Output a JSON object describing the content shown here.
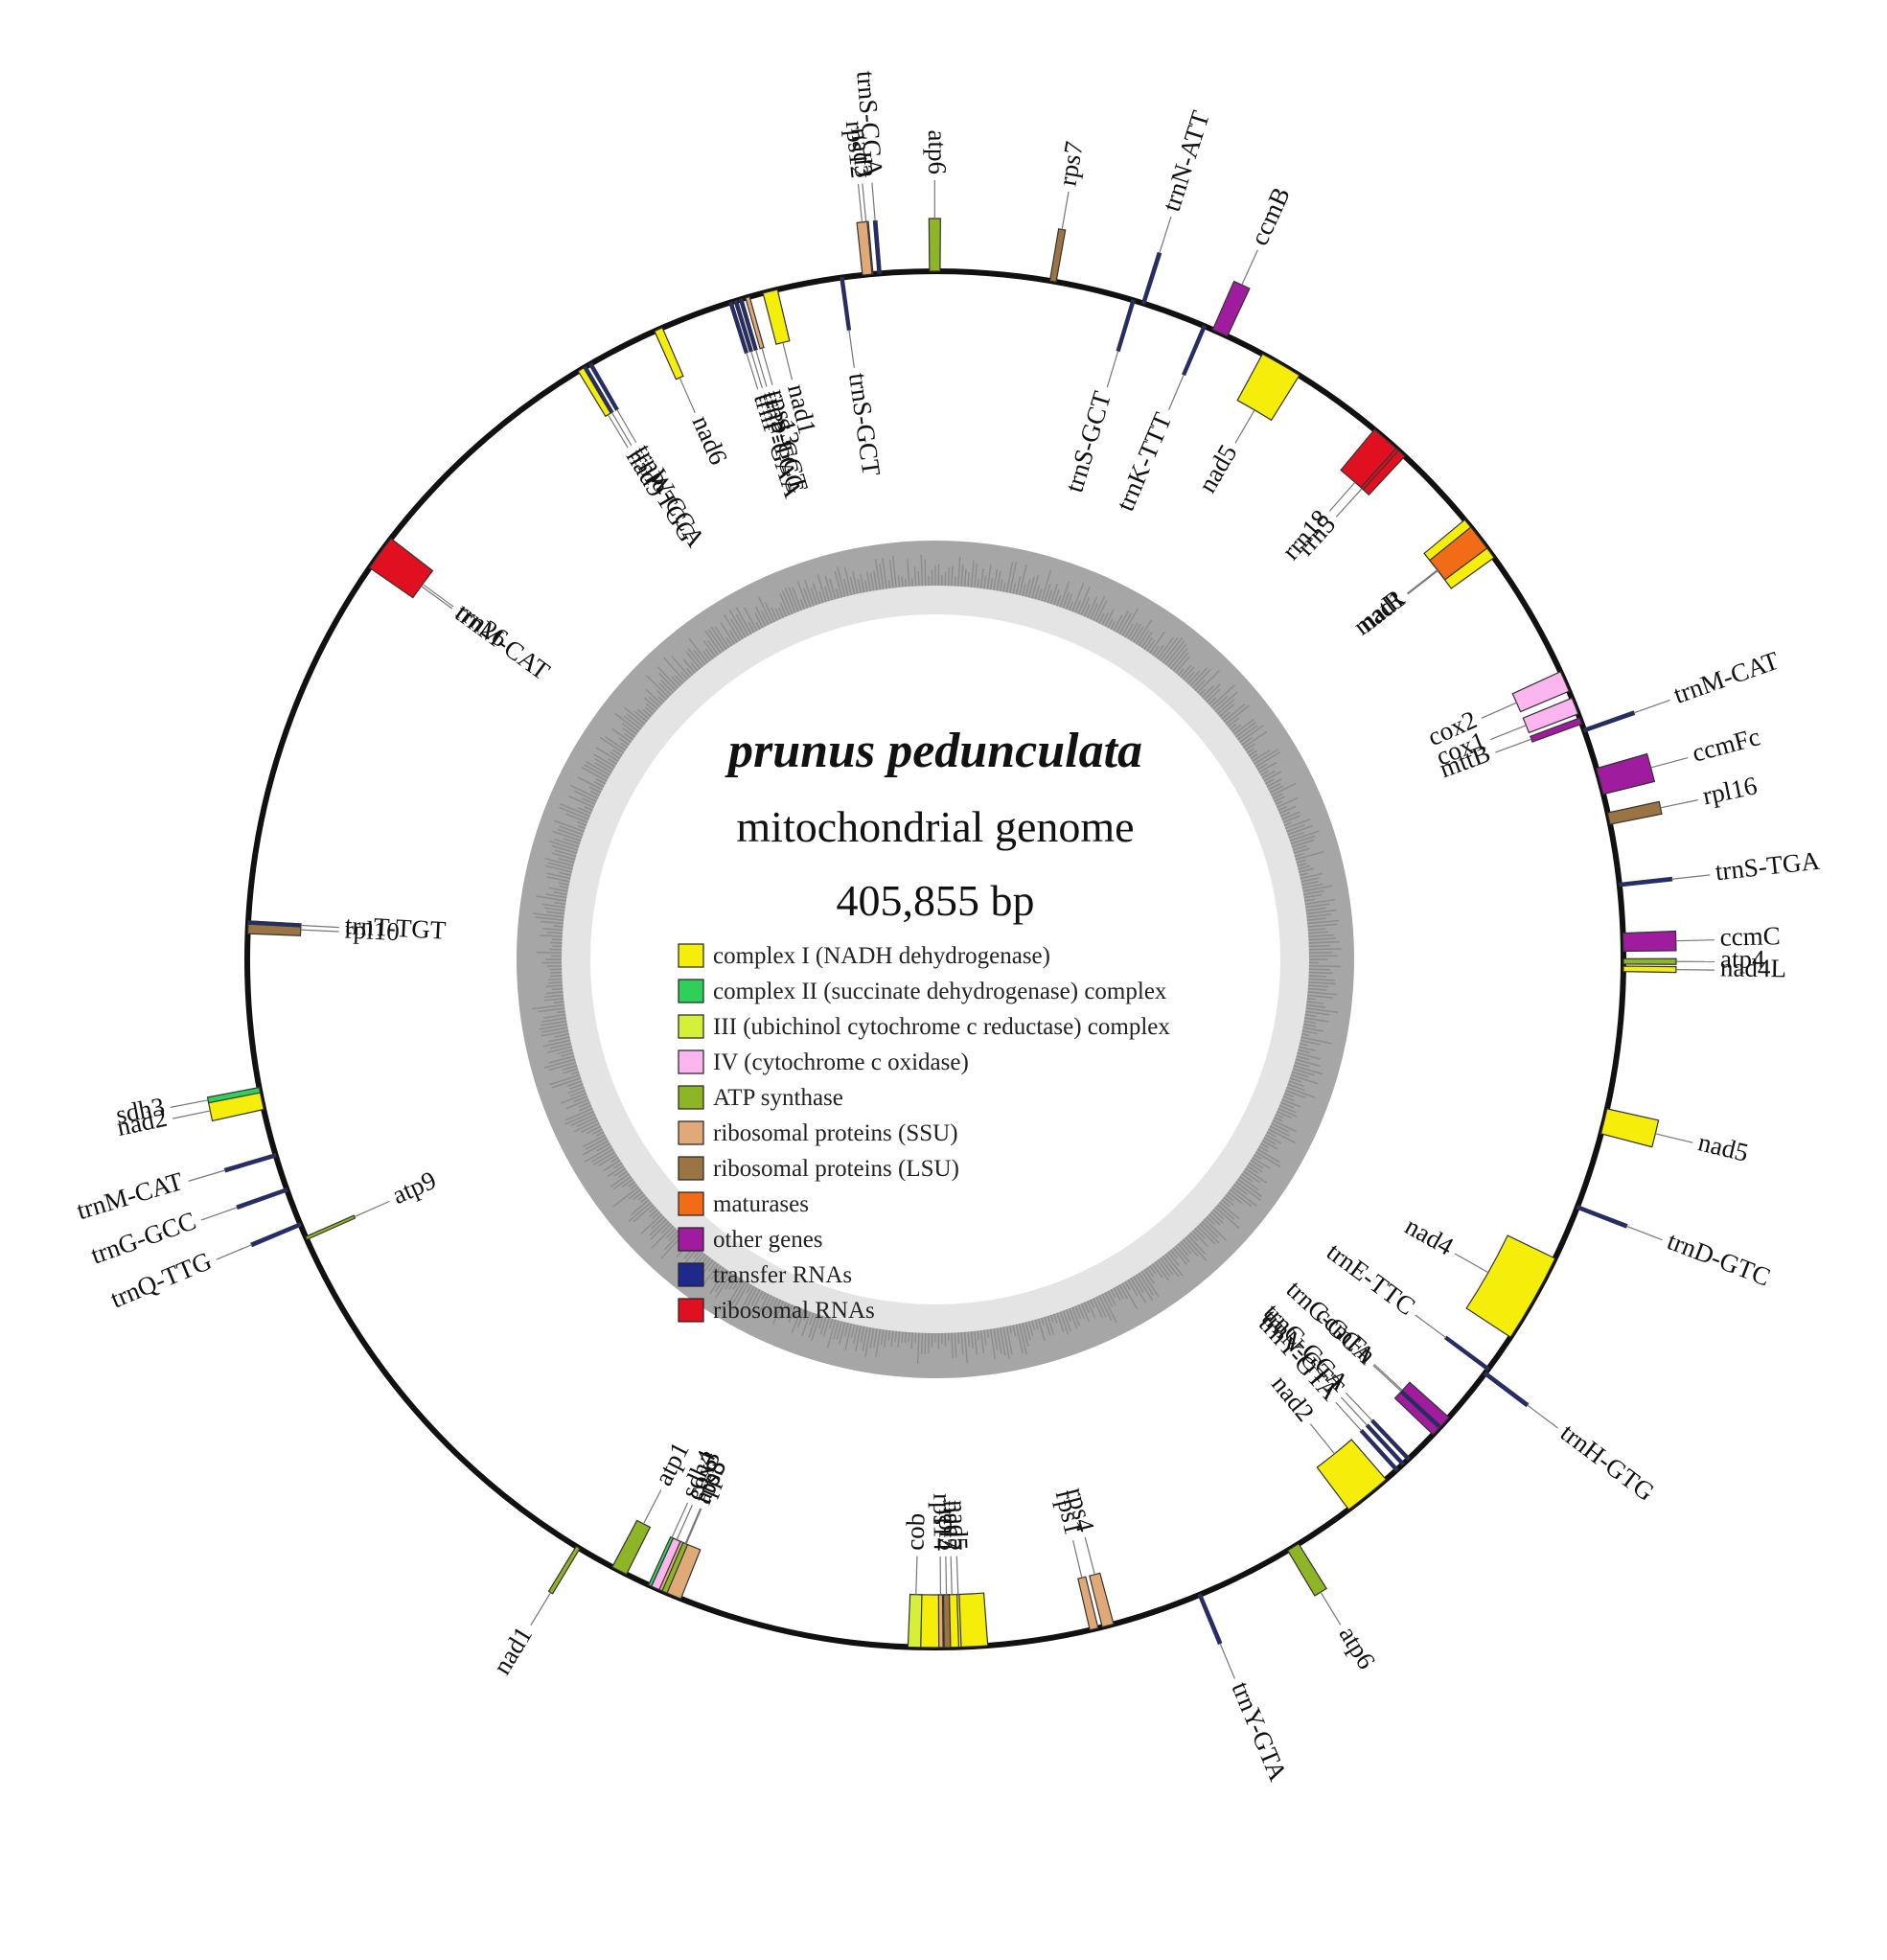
{
  "title": "prunus pedunculata",
  "subtitle": "mitochondrial genome",
  "size_label": "405,855 bp",
  "genome_length": 405855,
  "colors": {
    "complex_I": "#f5ee0a",
    "complex_II": "#2ed05a",
    "complex_III": "#d6f03a",
    "complex_IV": "#fbb6ef",
    "atp": "#8db526",
    "ssu": "#e0aa78",
    "lsu": "#9a7443",
    "maturases": "#f26b17",
    "other": "#a01c9e",
    "trna": "#1d2a8a",
    "rrna": "#e01020",
    "ring": "#111111",
    "gc_outer": "#a6a6a6",
    "gc_inner": "#e4e4e4"
  },
  "legend": [
    {
      "label": "complex I (NADH dehydrogenase)",
      "color": "#f5ee0a"
    },
    {
      "label": "complex II (succinate dehydrogenase) complex",
      "color": "#2ed05a"
    },
    {
      "label": "III (ubichinol cytochrome c reductase) complex",
      "color": "#d6f03a"
    },
    {
      "label": "IV (cytochrome c oxidase)",
      "color": "#fbb6ef"
    },
    {
      "label": "ATP synthase",
      "color": "#8db526"
    },
    {
      "label": "ribosomal proteins (SSU)",
      "color": "#e0aa78"
    },
    {
      "label": "ribosomal proteins (LSU)",
      "color": "#9a7443"
    },
    {
      "label": "maturases",
      "color": "#f26b17"
    },
    {
      "label": "other genes",
      "color": "#a01c9e"
    },
    {
      "label": "transfer RNAs",
      "color": "#1d2a8a"
    },
    {
      "label": "ribosomal RNAs",
      "color": "#e01020"
    }
  ],
  "genes": [
    {
      "name": "trnS-CGA",
      "cat": "trna",
      "pos": 400450,
      "len": 300,
      "strand": "out"
    },
    {
      "name": "nad3",
      "cat": "complex_I",
      "pos": 399600,
      "len": 400,
      "strand": "out"
    },
    {
      "name": "rps12",
      "cat": "ssu",
      "pos": 399000,
      "len": 900,
      "strand": "out"
    },
    {
      "name": "atp6",
      "cat": "atp",
      "pos": 405300,
      "len": 1000,
      "strand": "out"
    },
    {
      "name": "rps7",
      "cat": "lsu",
      "pos": 10800,
      "len": 600,
      "strand": "out"
    },
    {
      "name": "trnN-ATT",
      "cat": "trna",
      "pos": 19700,
      "len": 300,
      "strand": "out"
    },
    {
      "name": "trnS-GCT",
      "cat": "trna",
      "pos": 18700,
      "len": 300,
      "strand": "in"
    },
    {
      "name": "ccmB",
      "cat": "other",
      "pos": 26800,
      "len": 1500,
      "strand": "out"
    },
    {
      "name": "trnK-TTT",
      "cat": "trna",
      "pos": 25800,
      "len": 300,
      "strand": "in"
    },
    {
      "name": "nad5",
      "cat": "complex_I",
      "pos": 32000,
      "len": 4000,
      "strand": "in"
    },
    {
      "name": "rrn18",
      "cat": "rrna",
      "pos": 44700,
      "len": 3800,
      "strand": "in"
    },
    {
      "name": "rrn5",
      "cat": "rrna",
      "pos": 47400,
      "len": 300,
      "strand": "in"
    },
    {
      "name": "nad1",
      "cat": "complex_I",
      "pos": 56700,
      "len": 4500,
      "strand": "in"
    },
    {
      "name": "matR",
      "cat": "maturases",
      "pos": 57600,
      "len": 2500,
      "strand": "in"
    },
    {
      "name": "cox2",
      "cat": "complex_IV",
      "pos": 73600,
      "len": 2000,
      "strand": "in"
    },
    {
      "name": "cox1",
      "cat": "complex_IV",
      "pos": 76300,
      "len": 1600,
      "strand": "in"
    },
    {
      "name": "mttB",
      "cat": "other",
      "pos": 78300,
      "len": 600,
      "strand": "in"
    },
    {
      "name": "trnM-CAT",
      "cat": "trna",
      "pos": 79400,
      "len": 300,
      "strand": "out"
    },
    {
      "name": "ccmFc",
      "cat": "other",
      "pos": 83300,
      "len": 2500,
      "strand": "out"
    },
    {
      "name": "rpl16",
      "cat": "lsu",
      "pos": 87600,
      "len": 1100,
      "strand": "out"
    },
    {
      "name": "trnS-TGA",
      "cat": "trna",
      "pos": 94300,
      "len": 300,
      "strand": "out"
    },
    {
      "name": "ccmC",
      "cat": "other",
      "pos": 99000,
      "len": 1700,
      "strand": "out"
    },
    {
      "name": "atp4",
      "cat": "atp",
      "pos": 101400,
      "len": 500,
      "strand": "out"
    },
    {
      "name": "nad4L",
      "cat": "complex_I",
      "pos": 102100,
      "len": 500,
      "strand": "out"
    },
    {
      "name": "nad5",
      "cat": "complex_I",
      "pos": 115600,
      "len": 2400,
      "strand": "out"
    },
    {
      "name": "trnD-GTC",
      "cat": "trna",
      "pos": 125100,
      "len": 300,
      "strand": "out"
    },
    {
      "name": "nad4",
      "cat": "complex_I",
      "pos": 130500,
      "len": 8500,
      "strand": "in"
    },
    {
      "name": "trnH-GTG",
      "cat": "trna",
      "pos": 143000,
      "len": 300,
      "strand": "out"
    },
    {
      "name": "trnE-TTC",
      "cat": "trna",
      "pos": 142500,
      "len": 300,
      "strand": "in"
    },
    {
      "name": "ccmFn",
      "cat": "other",
      "pos": 148500,
      "len": 2200,
      "strand": "in"
    },
    {
      "name": "trnC-GCA",
      "cat": "trna",
      "pos": 149600,
      "len": 300,
      "strand": "in"
    },
    {
      "name": "trnC-GCA",
      "cat": "trna",
      "pos": 153800,
      "len": 300,
      "strand": "in"
    },
    {
      "name": "trnN-GTT",
      "cat": "trna",
      "pos": 154500,
      "len": 300,
      "strand": "in"
    },
    {
      "name": "trnY-GTA",
      "cat": "trna",
      "pos": 155300,
      "len": 300,
      "strand": "in"
    },
    {
      "name": "nad2",
      "cat": "complex_I",
      "pos": 156800,
      "len": 4500,
      "strand": "in"
    },
    {
      "name": "atp6",
      "cat": "atp",
      "pos": 167000,
      "len": 1200,
      "strand": "out"
    },
    {
      "name": "trnY-GTA",
      "cat": "trna",
      "pos": 177300,
      "len": 300,
      "strand": "out"
    },
    {
      "name": "rps4",
      "cat": "ssu",
      "pos": 186000,
      "len": 1100,
      "strand": "in"
    },
    {
      "name": "rps1",
      "cat": "ssu",
      "pos": 187500,
      "len": 800,
      "strand": "in"
    },
    {
      "name": "nad7",
      "cat": "complex_I",
      "pos": 198000,
      "len": 6500,
      "strand": "in"
    },
    {
      "name": "nad5",
      "cat": "complex_I",
      "pos": 200500,
      "len": 200,
      "strand": "in"
    },
    {
      "name": "rpl5",
      "cat": "lsu",
      "pos": 201500,
      "len": 600,
      "strand": "in"
    },
    {
      "name": "rps14",
      "cat": "ssu",
      "pos": 202200,
      "len": 400,
      "strand": "in"
    },
    {
      "name": "cob",
      "cat": "complex_III",
      "pos": 204300,
      "len": 1200,
      "strand": "in"
    },
    {
      "name": "rps3",
      "cat": "ssu",
      "pos": 227400,
      "len": 3100,
      "strand": "in"
    },
    {
      "name": "atp8",
      "cat": "atp",
      "pos": 228800,
      "len": 500,
      "strand": "in"
    },
    {
      "name": "cox3",
      "cat": "complex_IV",
      "pos": 229600,
      "len": 800,
      "strand": "in"
    },
    {
      "name": "sdh4",
      "cat": "complex_II",
      "pos": 230400,
      "len": 300,
      "strand": "in"
    },
    {
      "name": "atp1",
      "cat": "atp",
      "pos": 233000,
      "len": 1500,
      "strand": "in"
    },
    {
      "name": "nad1",
      "cat": "atp",
      "pos": 238000,
      "len": 400,
      "strand": "out"
    },
    {
      "name": "atp9",
      "cat": "atp",
      "pos": 277300,
      "len": 300,
      "strand": "in"
    },
    {
      "name": "trnQ-TTG",
      "cat": "trna",
      "pos": 278700,
      "len": 300,
      "strand": "out"
    },
    {
      "name": "trnG-GCC",
      "cat": "trna",
      "pos": 282200,
      "len": 300,
      "strand": "out"
    },
    {
      "name": "trnM-CAT",
      "cat": "trna",
      "pos": 285600,
      "len": 300,
      "strand": "out"
    },
    {
      "name": "nad2",
      "cat": "complex_I",
      "pos": 290200,
      "len": 1800,
      "strand": "out"
    },
    {
      "name": "sdh3",
      "cat": "complex_II",
      "pos": 291800,
      "len": 500,
      "strand": "out"
    },
    {
      "name": "rpl10",
      "cat": "lsu",
      "pos": 306800,
      "len": 1200,
      "strand": "in"
    },
    {
      "name": "trnT-TGT",
      "cat": "trna",
      "pos": 307700,
      "len": 300,
      "strand": "in"
    },
    {
      "name": "trnM-CAT",
      "cat": "trna",
      "pos": 344700,
      "len": 500,
      "strand": "in"
    },
    {
      "name": "rrn26",
      "cat": "rrna",
      "pos": 343500,
      "len": 3400,
      "strand": "in"
    },
    {
      "name": "trnW-CCA",
      "cat": "trna",
      "pos": 371800,
      "len": 300,
      "strand": "in"
    },
    {
      "name": "trnP-TGG",
      "cat": "trna",
      "pos": 371200,
      "len": 300,
      "strand": "in"
    },
    {
      "name": "nad9",
      "cat": "complex_I",
      "pos": 370600,
      "len": 600,
      "strand": "in"
    },
    {
      "name": "nad6",
      "cat": "complex_I",
      "pos": 378700,
      "len": 800,
      "strand": "in"
    },
    {
      "name": "trnS-GCT",
      "cat": "trna",
      "pos": 387200,
      "len": 300,
      "strand": "in"
    },
    {
      "name": "trnF-GAA",
      "cat": "trna",
      "pos": 386200,
      "len": 300,
      "strand": "in"
    },
    {
      "name": "trnP-TGG",
      "cat": "trna",
      "pos": 386700,
      "len": 300,
      "strand": "in"
    },
    {
      "name": "rps13",
      "cat": "ssu",
      "pos": 387800,
      "len": 400,
      "strand": "in"
    },
    {
      "name": "nad1",
      "cat": "complex_I",
      "pos": 389500,
      "len": 1400,
      "strand": "in"
    },
    {
      "name": "trnS-GCT",
      "cat": "trna",
      "pos": 396900,
      "len": 300,
      "strand": "in"
    }
  ]
}
